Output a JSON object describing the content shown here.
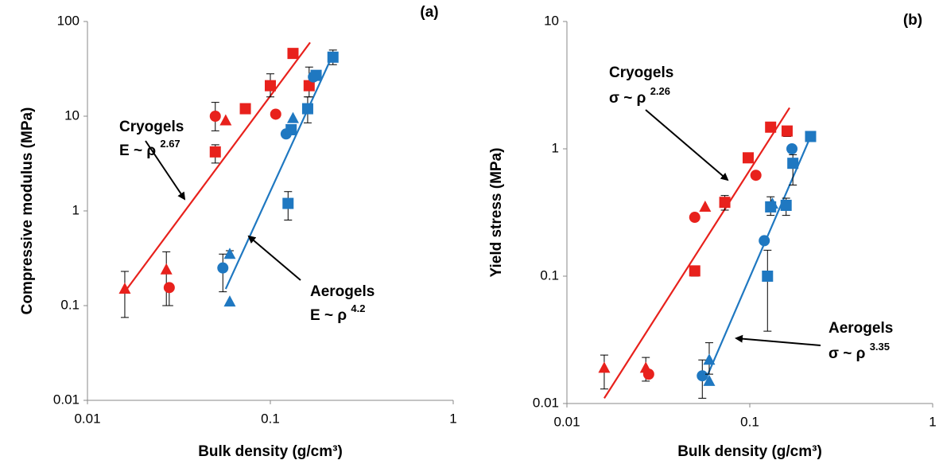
{
  "chart_data": [
    {
      "type": "scatter",
      "panel_label": "(a)",
      "x_label": "Bulk density (g/cm³)",
      "y_label": "Compressive modulus (MPa)",
      "xscale": "log",
      "yscale": "log",
      "xlim": [
        0.01,
        1
      ],
      "ylim": [
        0.01,
        100
      ],
      "xticks": [
        0.01,
        0.1,
        1
      ],
      "yticks": [
        0.01,
        0.1,
        1,
        10,
        100
      ],
      "series": [
        {
          "marker": "triangle",
          "color": "#e8211c",
          "x": [
            0.016,
            0.027,
            0.057
          ],
          "values": [
            0.15,
            0.24,
            9
          ],
          "error_low": [
            0.075,
            0.1,
            null
          ],
          "error_high": [
            0.23,
            0.37,
            null
          ]
        },
        {
          "marker": "circle",
          "color": "#e8211c",
          "x": [
            0.028,
            0.05,
            0.107
          ],
          "values": [
            0.155,
            10,
            10.5
          ],
          "error_low": [
            0.1,
            7,
            null
          ],
          "error_high": [
            null,
            14,
            null
          ]
        },
        {
          "marker": "square",
          "color": "#e8211c",
          "x": [
            0.05,
            0.073,
            0.1,
            0.133,
            0.163
          ],
          "values": [
            4.2,
            12,
            21,
            46,
            21
          ],
          "error_low": [
            3.2,
            null,
            16,
            null,
            16
          ],
          "error_high": [
            5,
            null,
            28,
            null,
            33
          ]
        },
        {
          "marker": "circle",
          "color": "#1f78c1",
          "x": [
            0.055,
            0.122,
            0.172
          ],
          "values": [
            0.25,
            6.5,
            26
          ],
          "error_low": [
            0.14,
            null,
            null
          ],
          "error_high": [
            0.35,
            null,
            null
          ]
        },
        {
          "marker": "triangle",
          "color": "#1f78c1",
          "x": [
            0.06,
            0.06,
            0.133
          ],
          "values": [
            0.35,
            0.11,
            9.5
          ],
          "error_low": [
            null,
            null,
            null
          ],
          "error_high": [
            0.38,
            null,
            null
          ]
        },
        {
          "marker": "square",
          "color": "#1f78c1",
          "x": [
            0.125,
            0.13,
            0.16,
            0.178,
            0.22
          ],
          "values": [
            1.2,
            7.2,
            12,
            27,
            42
          ],
          "error_low": [
            0.8,
            null,
            8.5,
            null,
            35
          ],
          "error_high": [
            1.6,
            null,
            16,
            null,
            50
          ]
        }
      ],
      "fits": [
        {
          "color": "#e8211c",
          "x": [
            0.016,
            0.165
          ],
          "values": [
            0.14,
            60
          ]
        },
        {
          "color": "#1f78c1",
          "x": [
            0.057,
            0.22
          ],
          "values": [
            0.15,
            45
          ]
        }
      ],
      "annotations": [
        {
          "text": "Cryogels"
        },
        {
          "text": "E ~ ρ ",
          "sup": "2.67"
        },
        {
          "text": "Aerogels"
        },
        {
          "text": "E ~ ρ ",
          "sup": "4.2"
        }
      ]
    },
    {
      "type": "scatter",
      "panel_label": "(b)",
      "x_label": "Bulk density (g/cm³)",
      "y_label": "Yield stress (MPa)",
      "xscale": "log",
      "yscale": "log",
      "xlim": [
        0.01,
        1
      ],
      "ylim": [
        0.01,
        10
      ],
      "xticks": [
        0.01,
        0.1,
        1
      ],
      "yticks": [
        0.01,
        0.1,
        1,
        10
      ],
      "series": [
        {
          "marker": "triangle",
          "color": "#e8211c",
          "x": [
            0.016,
            0.027,
            0.057
          ],
          "values": [
            0.019,
            0.019,
            0.35
          ],
          "error_low": [
            0.013,
            0.015,
            null
          ],
          "error_high": [
            0.024,
            0.023,
            null
          ]
        },
        {
          "marker": "circle",
          "color": "#e8211c",
          "x": [
            0.028,
            0.05,
            0.108
          ],
          "values": [
            0.017,
            0.29,
            0.62
          ],
          "error_low": [
            null,
            null,
            null
          ],
          "error_high": [
            null,
            null,
            null
          ]
        },
        {
          "marker": "square",
          "color": "#e8211c",
          "x": [
            0.05,
            0.073,
            0.098,
            0.13,
            0.16
          ],
          "values": [
            0.11,
            0.38,
            0.85,
            1.48,
            1.38
          ],
          "error_low": [
            0.1,
            0.33,
            null,
            null,
            1.25
          ],
          "error_high": [
            0.12,
            0.43,
            null,
            null,
            1.5
          ]
        },
        {
          "marker": "circle",
          "color": "#1f78c1",
          "x": [
            0.055,
            0.12,
            0.17
          ],
          "values": [
            0.0165,
            0.19,
            1.0
          ],
          "error_low": [
            0.011,
            null,
            null
          ],
          "error_high": [
            0.022,
            null,
            null
          ]
        },
        {
          "marker": "triangle",
          "color": "#1f78c1",
          "x": [
            0.06,
            0.06,
            0.133
          ],
          "values": [
            0.015,
            0.022,
            0.37
          ],
          "error_low": [
            null,
            0.017,
            null
          ],
          "error_high": [
            null,
            0.03,
            null
          ]
        },
        {
          "marker": "square",
          "color": "#1f78c1",
          "x": [
            0.125,
            0.13,
            0.158,
            0.172,
            0.215
          ],
          "values": [
            0.1,
            0.35,
            0.36,
            0.77,
            1.25
          ],
          "error_low": [
            0.037,
            0.3,
            0.3,
            0.52,
            null
          ],
          "error_high": [
            0.16,
            0.42,
            0.41,
            0.9,
            null
          ]
        }
      ],
      "fits": [
        {
          "color": "#e8211c",
          "x": [
            0.016,
            0.165
          ],
          "values": [
            0.011,
            2.1
          ]
        },
        {
          "color": "#1f78c1",
          "x": [
            0.058,
            0.215
          ],
          "values": [
            0.016,
            1.25
          ]
        }
      ],
      "annotations": [
        {
          "text": "Cryogels"
        },
        {
          "text": "σ ~ ρ ",
          "sup": "2.26"
        },
        {
          "text": "Aerogels"
        },
        {
          "text": "σ ~ ρ ",
          "sup": "3.35"
        }
      ]
    }
  ]
}
